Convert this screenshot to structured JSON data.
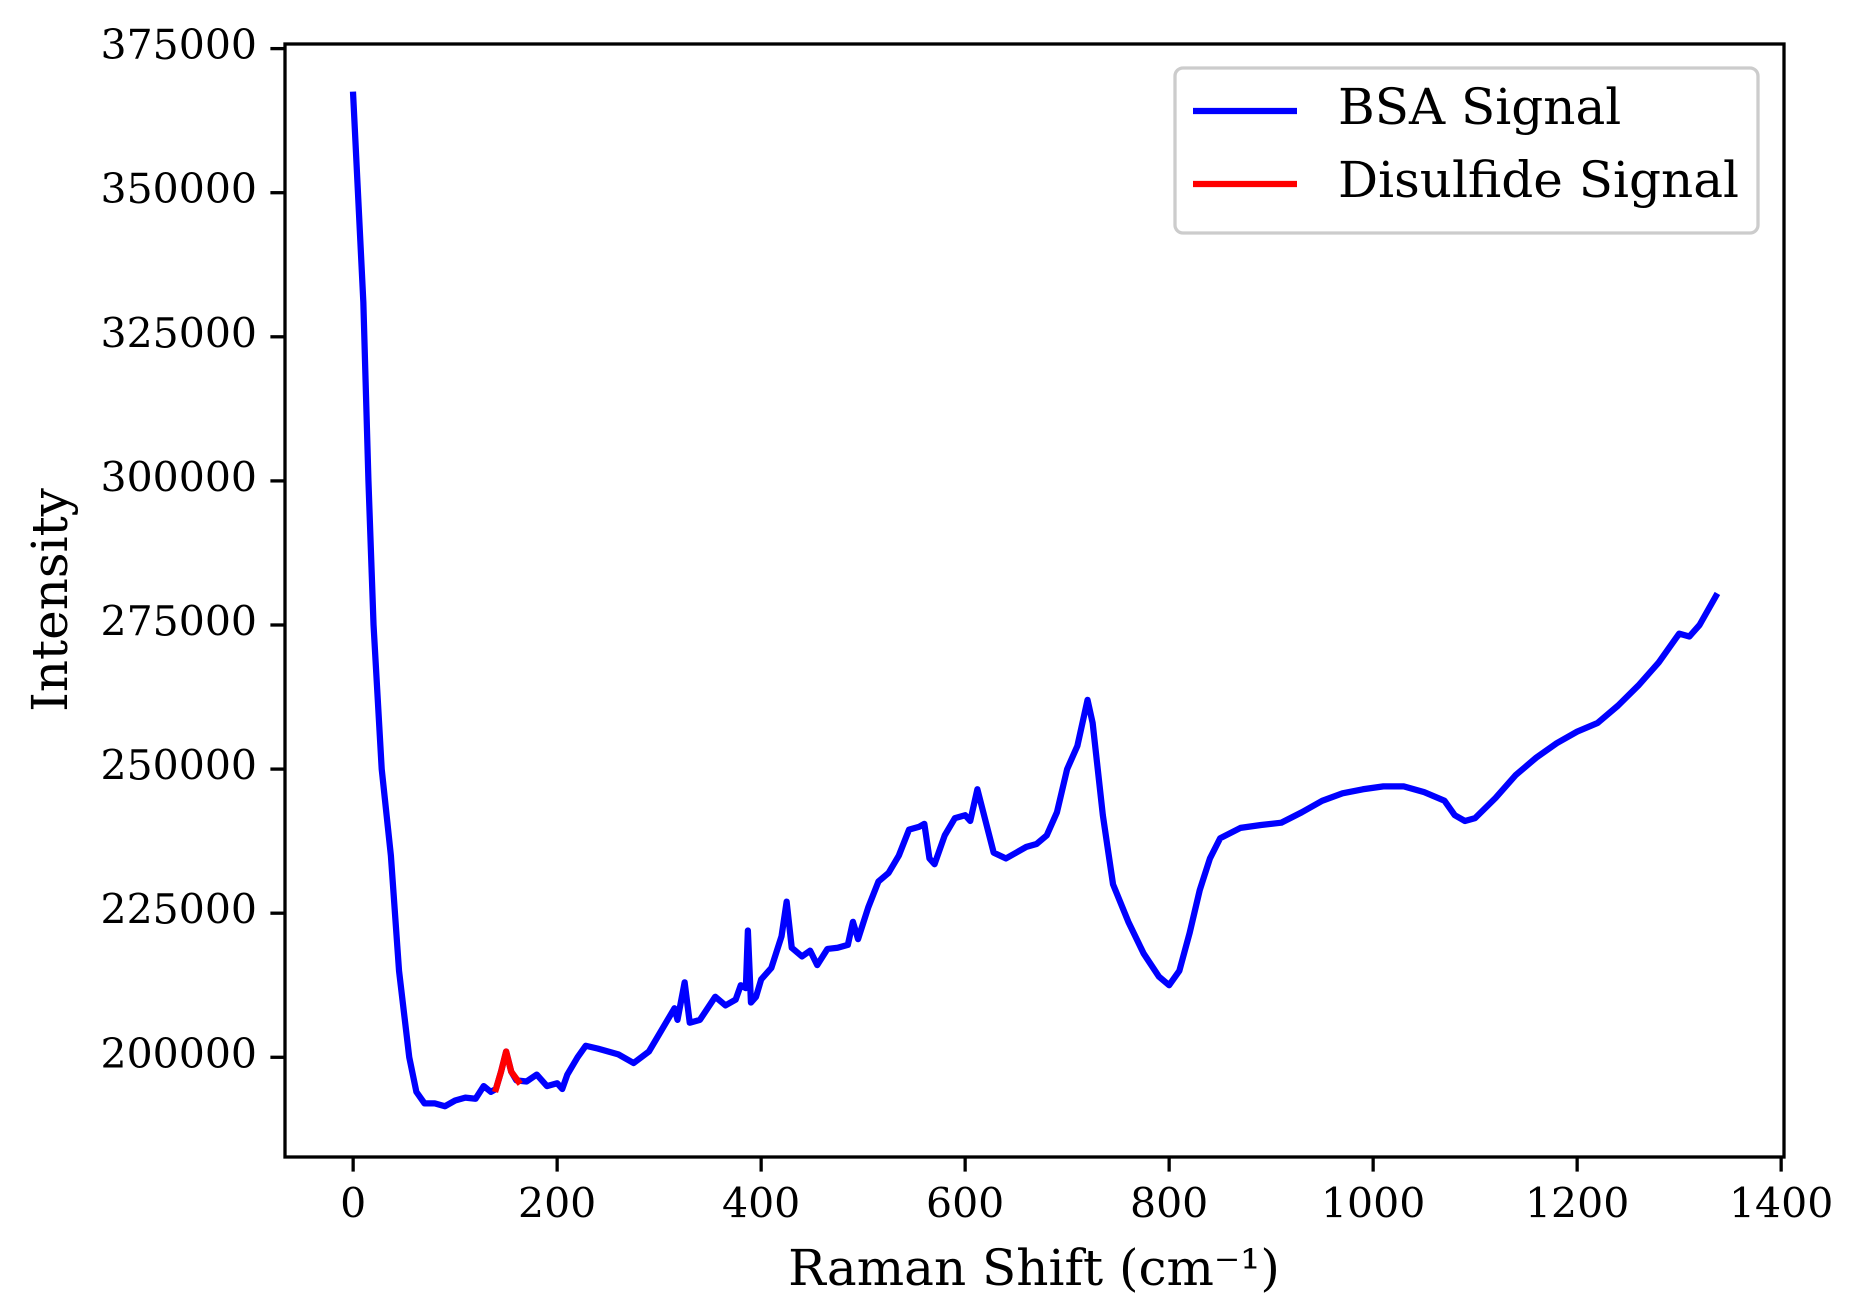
{
  "chart_data": {
    "type": "line",
    "xlabel": "Raman Shift (cm⁻¹)",
    "ylabel": "Intensity",
    "xlim": [
      -66.8,
      1402.8
    ],
    "ylim": [
      182700,
      375800
    ],
    "xticks": [
      0,
      200,
      400,
      600,
      800,
      1000,
      1200,
      1400
    ],
    "yticks": [
      200000,
      225000,
      250000,
      275000,
      300000,
      325000,
      350000,
      375000
    ],
    "grid": false,
    "legend": "upper right",
    "series": [
      {
        "name": "BSA Signal",
        "color": "#0000ff",
        "x": [
          0,
          10,
          15,
          20,
          28,
          37,
          45,
          55,
          62,
          70,
          80,
          90,
          100,
          110,
          120,
          128,
          135,
          140,
          145,
          150,
          155,
          160,
          170,
          180,
          190,
          200,
          205,
          210,
          220,
          228,
          240,
          260,
          275,
          290,
          300,
          310,
          315,
          318,
          325,
          330,
          340,
          355,
          365,
          375,
          380,
          385,
          387,
          390,
          395,
          400,
          410,
          420,
          425,
          430,
          440,
          448,
          455,
          465,
          475,
          485,
          490,
          495,
          505,
          515,
          525,
          535,
          545,
          555,
          560,
          565,
          570,
          580,
          590,
          600,
          605,
          612,
          620,
          628,
          640,
          650,
          660,
          670,
          680,
          690,
          700,
          710,
          720,
          725,
          735,
          745,
          760,
          775,
          790,
          800,
          810,
          820,
          830,
          840,
          850,
          870,
          890,
          910,
          930,
          950,
          970,
          990,
          1010,
          1030,
          1050,
          1070,
          1080,
          1090,
          1100,
          1120,
          1140,
          1160,
          1180,
          1200,
          1220,
          1240,
          1260,
          1280,
          1300,
          1310,
          1320,
          1336
        ],
        "values": [
          367000,
          331000,
          300000,
          275000,
          250000,
          235000,
          215000,
          200000,
          194000,
          192000,
          192000,
          191500,
          192500,
          193000,
          192800,
          195000,
          194000,
          194500,
          197500,
          201000,
          197500,
          196000,
          195800,
          197000,
          195000,
          195500,
          194500,
          197000,
          200000,
          202000,
          201500,
          200500,
          199000,
          201000,
          204000,
          207000,
          208500,
          206500,
          213000,
          206000,
          206500,
          210500,
          209000,
          210000,
          212500,
          212000,
          222000,
          209500,
          210500,
          213500,
          215500,
          221000,
          227000,
          219000,
          217500,
          218500,
          216000,
          218800,
          219000,
          219500,
          223500,
          220500,
          226000,
          230500,
          232000,
          235000,
          239500,
          240000,
          240500,
          234500,
          233500,
          238500,
          241500,
          242000,
          241000,
          246500,
          241000,
          235500,
          234500,
          235500,
          236500,
          237000,
          238500,
          242500,
          250000,
          254000,
          262000,
          258000,
          242000,
          230000,
          223500,
          218000,
          214000,
          212500,
          215000,
          221500,
          229000,
          234500,
          238000,
          239800,
          240300,
          240700,
          242500,
          244500,
          245800,
          246500,
          247000,
          247000,
          246000,
          244500,
          242000,
          241000,
          241500,
          245000,
          249000,
          252000,
          254500,
          256500,
          258000,
          261000,
          264500,
          268500,
          273500,
          273000,
          275000,
          280000
        ]
      },
      {
        "name": "Disulfide Signal",
        "color": "#ff0000",
        "x": [
          140,
          145,
          150,
          155,
          162
        ],
        "values": [
          194500,
          197500,
          201000,
          197500,
          195800
        ]
      }
    ]
  }
}
